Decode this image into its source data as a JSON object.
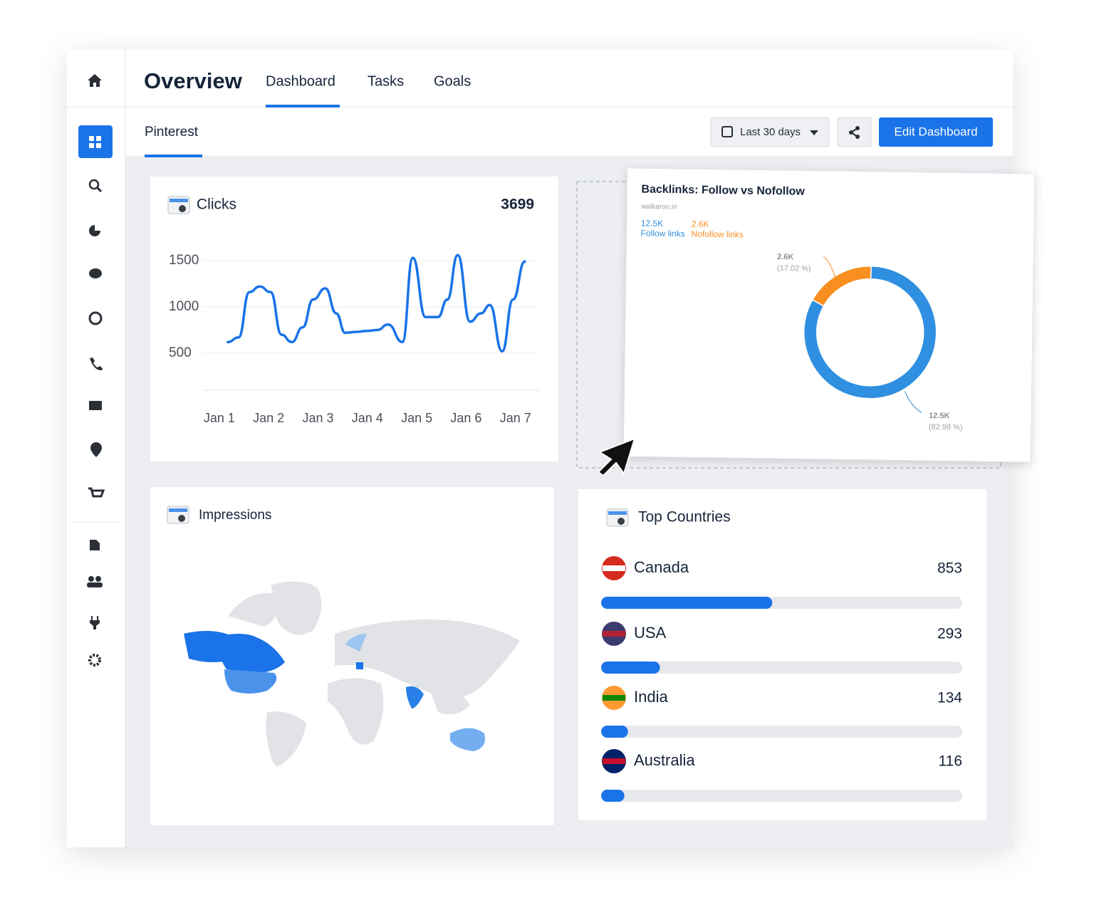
{
  "nav": {
    "title": "Overview",
    "tabs": [
      "Dashboard",
      "Tasks",
      "Goals"
    ]
  },
  "subnav": {
    "tab": "Pinterest",
    "date_range": "Last 30 days",
    "edit_button": "Edit Dashboard"
  },
  "impressions": {
    "title": "Impressions"
  },
  "chart_data": [
    {
      "type": "line",
      "title": "Clicks",
      "total": 3699,
      "color": "#1a73e8",
      "x": [
        1.17,
        1.39,
        1.61,
        1.82,
        2.04,
        2.26,
        2.47,
        2.69,
        2.9,
        3.15,
        3.37,
        3.55,
        3.77,
        3.99,
        4.2,
        4.42,
        4.71,
        4.92,
        5.18,
        5.43,
        5.62,
        5.83,
        6.08,
        6.3,
        6.48,
        6.73,
        6.95,
        7.19
      ],
      "values": [
        620,
        670,
        1160,
        1220,
        1160,
        700,
        620,
        780,
        1080,
        1200,
        930,
        720,
        730,
        740,
        750,
        810,
        620,
        1530,
        890,
        890,
        1080,
        1560,
        840,
        930,
        1020,
        520,
        1080,
        1490
      ],
      "xlim": [
        0.67,
        7.48
      ],
      "xticks": [
        {
          "value": 1,
          "label": "Jan 1"
        },
        {
          "value": 2,
          "label": "Jan 2"
        },
        {
          "value": 3,
          "label": "Jan 3"
        },
        {
          "value": 4,
          "label": "Jan 4"
        },
        {
          "value": 5,
          "label": "Jan 5"
        },
        {
          "value": 6,
          "label": "Jan 6"
        },
        {
          "value": 7,
          "label": "Jan 7"
        }
      ],
      "ylim": [
        100,
        1700
      ],
      "yticks": [
        500,
        1000,
        1500
      ],
      "grid": true
    },
    {
      "type": "pie",
      "donut": true,
      "title": "Backlinks: Follow vs Nofollow",
      "subtitle": "walkaroo.in",
      "categories": [
        "Follow links",
        "Nofollow links"
      ],
      "values": [
        82.98,
        17.02
      ],
      "value_labels": [
        "(82.98 %)",
        "(17.02 %)"
      ],
      "count_labels": [
        "12.5K",
        "2.6K"
      ],
      "colors": [
        "#2f8fe0",
        "#f88f20"
      ]
    },
    {
      "type": "bar",
      "orientation": "horizontal",
      "title": "Top Countries",
      "categories": [
        "Canada",
        "USA",
        "India",
        "Australia"
      ],
      "values": [
        853,
        293,
        134,
        116
      ],
      "xlim": [
        0,
        1800
      ],
      "color": "#1a73e8"
    }
  ]
}
